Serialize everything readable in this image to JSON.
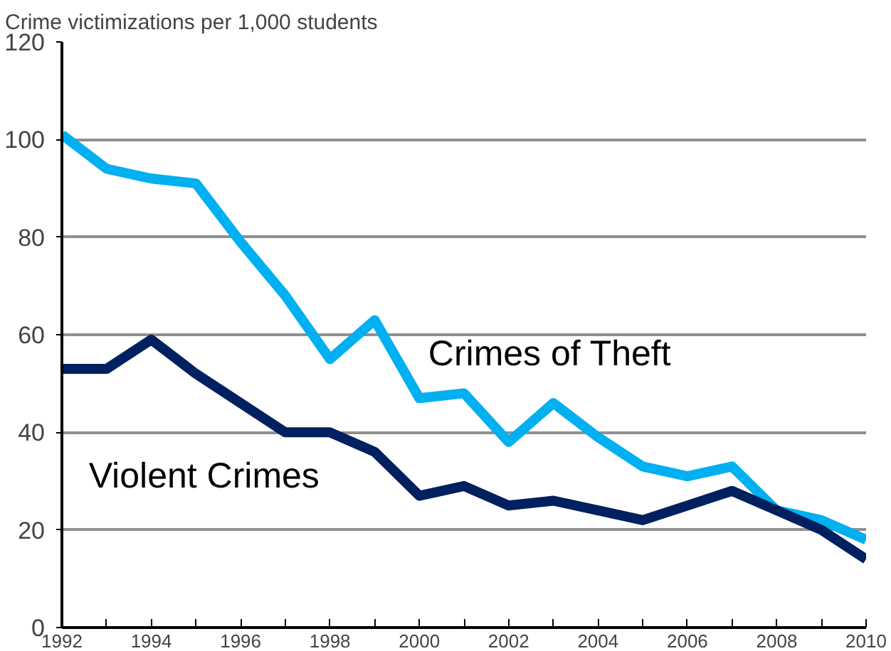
{
  "chart_data": {
    "type": "line",
    "ylabel": "Crime victimizations per 1,000 students",
    "x": [
      1992,
      1993,
      1994,
      1995,
      1996,
      1997,
      1998,
      1999,
      2000,
      2001,
      2002,
      2003,
      2004,
      2005,
      2006,
      2007,
      2008,
      2009,
      2010
    ],
    "series": [
      {
        "name": "Crimes of Theft",
        "color": "#00b0f0",
        "values": [
          101,
          94,
          92,
          91,
          79,
          68,
          55,
          63,
          47,
          48,
          38,
          46,
          39,
          33,
          31,
          33,
          24,
          22,
          18
        ]
      },
      {
        "name": "Violent Crimes",
        "color": "#002060",
        "values": [
          53,
          53,
          59,
          52,
          46,
          40,
          40,
          36,
          27,
          29,
          25,
          26,
          24,
          22,
          25,
          28,
          24,
          20,
          14
        ]
      }
    ],
    "xlim": [
      1992,
      2010
    ],
    "xticks": [
      1992,
      {
        "value": 1993,
        "label": null
      },
      1994,
      {
        "value": 1995,
        "label": null
      },
      1996,
      {
        "value": 1997,
        "label": null
      },
      1998,
      {
        "value": 1999,
        "label": null
      },
      2000,
      {
        "value": 2001,
        "label": null
      },
      2002,
      {
        "value": 2003,
        "label": null
      },
      2004,
      {
        "value": 2005,
        "label": null
      },
      2006,
      {
        "value": 2007,
        "label": null
      },
      2008,
      {
        "value": 2009,
        "label": null
      },
      2010
    ],
    "ylim": [
      0,
      120
    ],
    "yticks": [
      0,
      20,
      40,
      60,
      80,
      100,
      120
    ],
    "grid": "y",
    "legend": false,
    "marker": "none",
    "line_style": "solid"
  }
}
